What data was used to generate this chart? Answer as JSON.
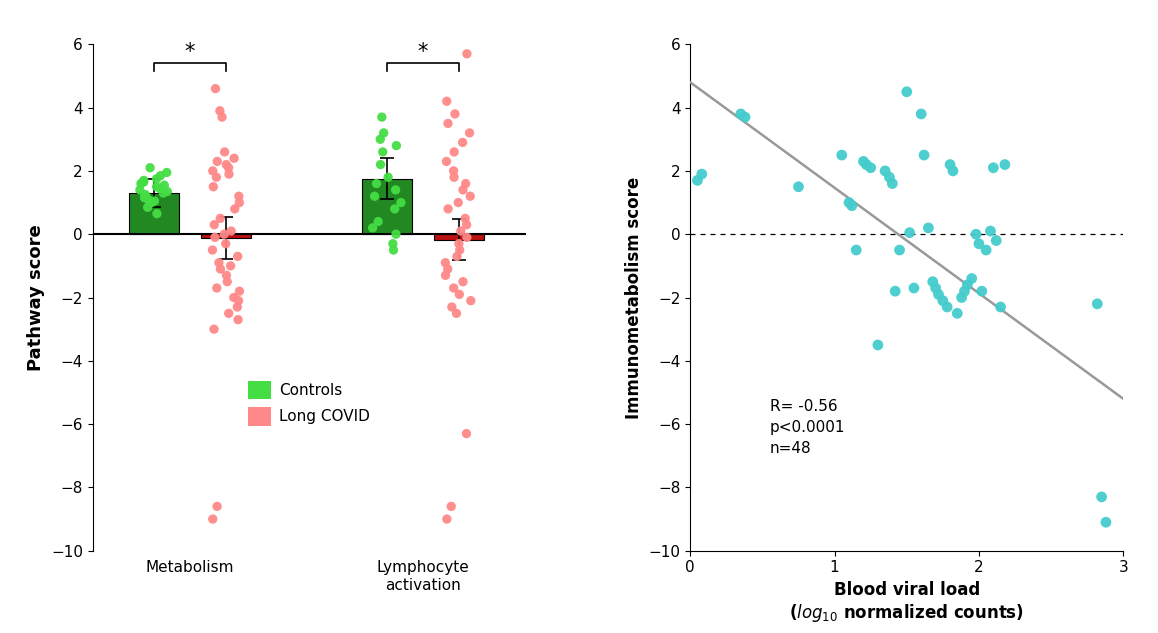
{
  "left_panel": {
    "ylabel": "Pathway score",
    "ylim": [
      -10,
      6
    ],
    "yticks": [
      -10,
      -8,
      -6,
      -4,
      -2,
      0,
      2,
      4,
      6
    ],
    "xtick_labels": [
      "Metabolism",
      "Lymphocyte\nactivation"
    ],
    "controls_metab_mean": 1.3,
    "controls_metab_err": 0.45,
    "covid_metab_mean": -0.12,
    "covid_metab_err": 0.65,
    "controls_lymph_mean": 1.75,
    "controls_lymph_err": 0.65,
    "covid_lymph_mean": -0.18,
    "covid_lymph_err": 0.65,
    "controls_color": "#44dd44",
    "covid_color": "#ff8888",
    "bar_green": "#228822",
    "bar_red": "#bb1111",
    "controls_metab_dots": [
      2.1,
      1.95,
      1.85,
      1.75,
      1.7,
      1.65,
      1.6,
      1.55,
      1.5,
      1.45,
      1.4,
      1.35,
      1.3,
      1.25,
      1.2,
      1.15,
      1.1,
      1.05,
      1.0,
      0.85,
      0.65
    ],
    "covid_metab_dots": [
      4.6,
      3.9,
      3.7,
      2.6,
      2.4,
      2.3,
      2.2,
      2.1,
      2.0,
      1.9,
      1.8,
      1.5,
      1.2,
      1.0,
      0.8,
      0.5,
      0.3,
      0.1,
      0.0,
      -0.1,
      -0.3,
      -0.5,
      -0.7,
      -0.9,
      -1.0,
      -1.1,
      -1.3,
      -1.5,
      -1.7,
      -1.8,
      -2.0,
      -2.1,
      -2.3,
      -2.5,
      -2.7,
      -3.0,
      -8.6,
      -9.0
    ],
    "controls_lymph_dots": [
      3.7,
      3.2,
      3.0,
      2.8,
      2.6,
      2.2,
      1.8,
      1.6,
      1.4,
      1.2,
      1.0,
      0.8,
      0.4,
      0.2,
      0.0,
      -0.3,
      -0.5
    ],
    "covid_lymph_dots": [
      5.7,
      4.2,
      3.8,
      3.5,
      3.2,
      2.9,
      2.6,
      2.3,
      2.0,
      1.8,
      1.6,
      1.4,
      1.2,
      1.0,
      0.8,
      0.5,
      0.3,
      0.1,
      -0.1,
      -0.3,
      -0.5,
      -0.7,
      -0.9,
      -1.1,
      -1.3,
      -1.5,
      -1.7,
      -1.9,
      -2.1,
      -2.3,
      -2.5,
      -6.3,
      -8.6,
      -9.0
    ]
  },
  "right_panel": {
    "xlabel_line1": "Blood viral load",
    "xlabel_line2": " normalized counts)",
    "ylabel": "Immunometabolism score",
    "xlim": [
      0,
      3
    ],
    "ylim": [
      -10,
      6
    ],
    "yticks": [
      -10,
      -8,
      -6,
      -4,
      -2,
      0,
      2,
      4,
      6
    ],
    "xticks": [
      0,
      1,
      2,
      3
    ],
    "dot_color": "#44cccc",
    "regression_color": "#999999",
    "annotation": "R= -0.56\np<0.0001\nn=48",
    "scatter_x": [
      0.05,
      0.08,
      0.35,
      0.38,
      0.75,
      1.05,
      1.1,
      1.12,
      1.15,
      1.2,
      1.22,
      1.25,
      1.3,
      1.35,
      1.38,
      1.4,
      1.42,
      1.45,
      1.5,
      1.52,
      1.55,
      1.6,
      1.62,
      1.65,
      1.68,
      1.7,
      1.72,
      1.75,
      1.78,
      1.8,
      1.82,
      1.85,
      1.88,
      1.9,
      1.92,
      1.95,
      1.98,
      2.0,
      2.02,
      2.05,
      2.08,
      2.1,
      2.12,
      2.15,
      2.18,
      2.82,
      2.85,
      2.88
    ],
    "scatter_y": [
      1.7,
      1.9,
      3.8,
      3.7,
      1.5,
      2.5,
      1.0,
      0.9,
      -0.5,
      2.3,
      2.2,
      2.1,
      -3.5,
      2.0,
      1.8,
      1.6,
      -1.8,
      -0.5,
      4.5,
      0.05,
      -1.7,
      3.8,
      2.5,
      0.2,
      -1.5,
      -1.7,
      -1.9,
      -2.1,
      -2.3,
      2.2,
      2.0,
      -2.5,
      -2.0,
      -1.8,
      -1.6,
      -1.4,
      0.0,
      -0.3,
      -1.8,
      -0.5,
      0.1,
      2.1,
      -0.2,
      -2.3,
      2.2,
      -2.2,
      -8.3,
      -9.1
    ],
    "regress_x0": 0,
    "regress_y0": 4.8,
    "regress_x1": 3,
    "regress_y1": -5.2
  },
  "background_color": "#ffffff"
}
